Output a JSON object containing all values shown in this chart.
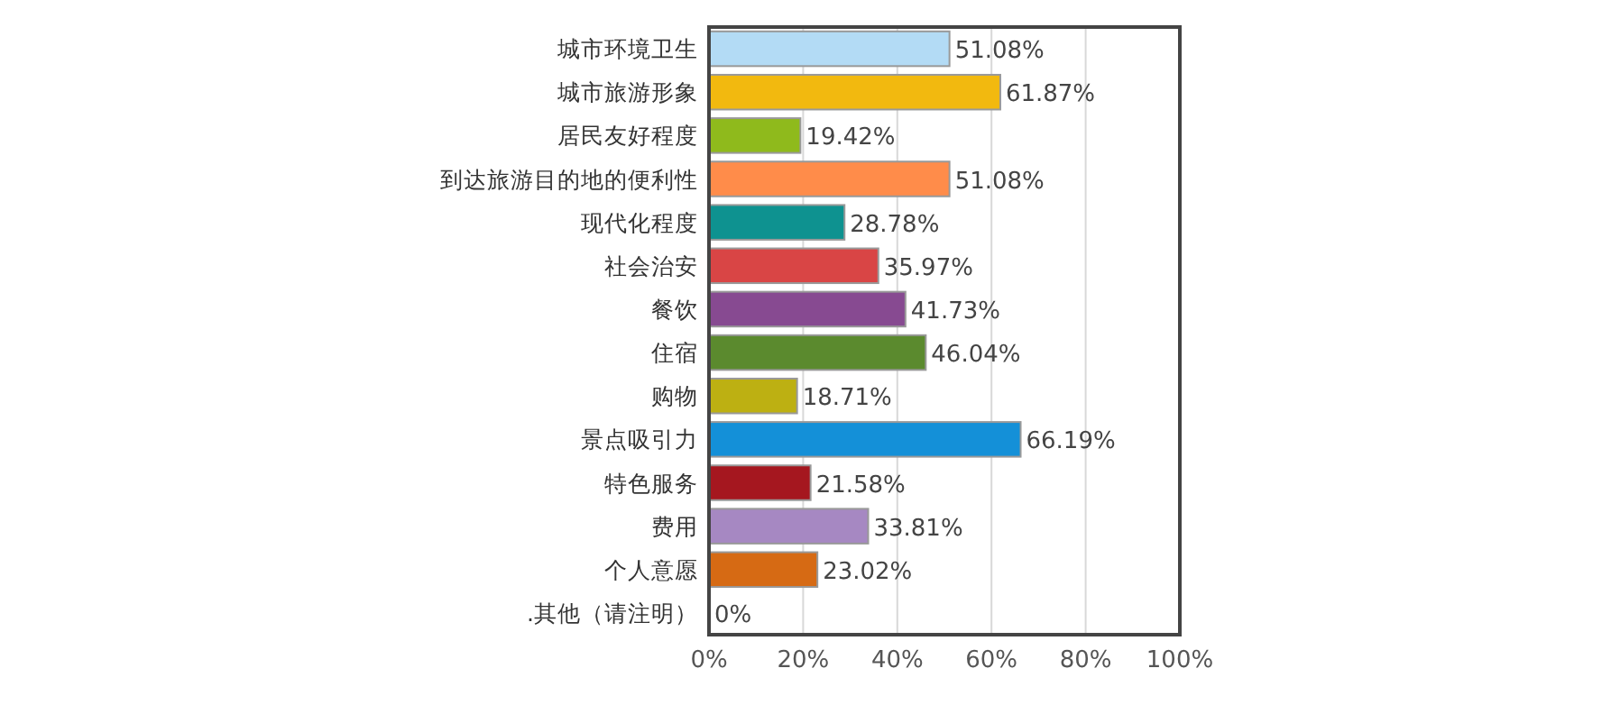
{
  "chart_data": {
    "type": "bar",
    "orientation": "horizontal",
    "categories": [
      "城市环境卫生",
      "城市旅游形象",
      "居民友好程度",
      "到达旅游目的地的便利性",
      "现代化程度",
      "社会治安",
      "餐饮",
      "住宿",
      "购物",
      "景点吸引力",
      "特色服务",
      "费用",
      "个人意愿",
      ".其他（请注明）"
    ],
    "values": [
      51.08,
      61.87,
      19.42,
      51.08,
      28.78,
      35.97,
      41.73,
      46.04,
      18.71,
      66.19,
      21.58,
      33.81,
      23.02,
      0
    ],
    "value_labels": [
      "51.08%",
      "61.87%",
      "19.42%",
      "51.08%",
      "28.78%",
      "35.97%",
      "41.73%",
      "46.04%",
      "18.71%",
      "66.19%",
      "21.58%",
      "33.81%",
      "23.02%",
      "0%"
    ],
    "colors": [
      "#b3dbf5",
      "#f2b90f",
      "#8fba1c",
      "#ff8c4a",
      "#0e9290",
      "#d94545",
      "#874a91",
      "#5b8a2e",
      "#bdb012",
      "#1490d8",
      "#a5171f",
      "#a688c2",
      "#d66a14",
      "#cccccc"
    ],
    "xlim": [
      0,
      100
    ],
    "xticks": [
      {
        "value": 0,
        "label": "0%"
      },
      {
        "value": 20,
        "label": "20%"
      },
      {
        "value": 40,
        "label": "40%"
      },
      {
        "value": 60,
        "label": "60%"
      },
      {
        "value": 80,
        "label": "80%"
      },
      {
        "value": 100,
        "label": "100%"
      }
    ],
    "grid": "x"
  }
}
